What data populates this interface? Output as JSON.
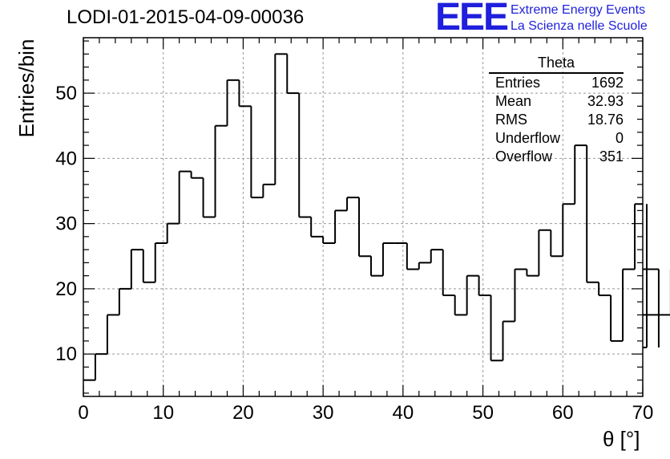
{
  "header": {
    "title": "LODI-01-2015-04-09-00036",
    "logo_text": "EEE",
    "logo_line1": "Extreme Energy Events",
    "logo_line2": "La Scienza nelle Scuole",
    "logo_color": "#1f1fdd"
  },
  "stats_box": {
    "title": "Theta",
    "rows": [
      {
        "label": "Entries",
        "value": "1692"
      },
      {
        "label": "Mean",
        "value": "32.93"
      },
      {
        "label": "RMS",
        "value": "18.76"
      },
      {
        "label": "Underflow",
        "value": "0"
      },
      {
        "label": "Overflow",
        "value": "351"
      }
    ]
  },
  "chart_data": {
    "type": "histogram",
    "title": "LODI-01-2015-04-09-00036",
    "xlabel": "θ [°]",
    "ylabel": "Entries/bin",
    "xlim": [
      0,
      70
    ],
    "ylim": [
      3.5,
      58.5
    ],
    "x_ticks": [
      0,
      10,
      20,
      30,
      40,
      50,
      60,
      70
    ],
    "y_ticks": [
      10,
      20,
      30,
      40,
      50
    ],
    "grid": true,
    "bin_width": 1.5,
    "bin_edges_start": 0,
    "values": [
      6,
      10,
      16,
      20,
      26,
      21,
      27,
      30,
      38,
      37,
      31,
      45,
      52,
      48,
      34,
      36,
      56,
      50,
      31,
      28,
      27,
      32,
      34,
      25,
      22,
      27,
      27,
      23,
      24,
      26,
      19,
      16,
      22,
      19,
      9,
      15,
      23,
      22,
      29,
      25,
      33,
      42,
      21,
      19,
      12,
      23,
      33,
      11,
      23,
      16
    ]
  }
}
